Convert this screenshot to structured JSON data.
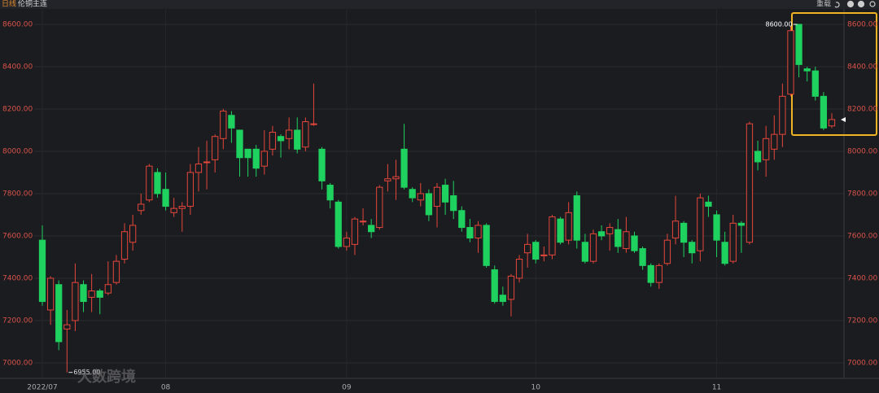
{
  "chart_data": {
    "type": "candlestick",
    "period": "日线",
    "title": "伦铜主连",
    "reload": "重载",
    "watermark": "大数跨境",
    "high_label": "8600.00",
    "low_label": "6955.00",
    "up_color": "#e5463b",
    "down_color": "#1fd15f",
    "categories": [
      "2022/07",
      null,
      null,
      null,
      null,
      null,
      null,
      null,
      null,
      null,
      null,
      null,
      null,
      null,
      null,
      "08",
      null,
      null,
      null,
      null,
      null,
      null,
      null,
      null,
      null,
      null,
      null,
      null,
      null,
      null,
      null,
      null,
      null,
      null,
      null,
      null,
      null,
      "09",
      null,
      null,
      null,
      null,
      null,
      null,
      null,
      null,
      null,
      null,
      null,
      null,
      null,
      null,
      null,
      null,
      null,
      null,
      null,
      null,
      null,
      null,
      "10",
      null,
      null,
      null,
      null,
      null,
      null,
      null,
      null,
      null,
      null,
      null,
      null,
      null,
      null,
      null,
      null,
      null,
      null,
      null,
      null,
      null,
      "11",
      null,
      null,
      null,
      null,
      null,
      null,
      null,
      null,
      null,
      null,
      null,
      null,
      null,
      null
    ],
    "open": [
      7580,
      7250,
      7370,
      7160,
      7200,
      7370,
      7310,
      7340,
      7330,
      7380,
      7490,
      7570,
      7720,
      7770,
      7900,
      7820,
      7710,
      7730,
      7740,
      7900,
      7950,
      7960,
      8060,
      8170,
      8100,
      8010,
      8010,
      7930,
      8010,
      8070,
      8060,
      8100,
      8020,
      8130,
      8010,
      7840,
      7760,
      7550,
      7560,
      7670,
      7650,
      7640,
      7860,
      7870,
      8010,
      7820,
      7770,
      7800,
      7740,
      7840,
      7790,
      7720,
      7640,
      7590,
      7650,
      7440,
      7320,
      7300,
      7400,
      7520,
      7570,
      7510,
      7510,
      7680,
      7580,
      7790,
      7570,
      7480,
      7620,
      7610,
      7630,
      7540,
      7600,
      7540,
      7460,
      7380,
      7470,
      7590,
      7660,
      7570,
      7530,
      7760,
      7700,
      7570,
      7480,
      7660,
      7570,
      8000,
      7960,
      8010,
      8080,
      8270,
      8600,
      8390,
      8380,
      8260,
      8120
    ],
    "high": [
      7650,
      7410,
      7390,
      7250,
      7470,
      7390,
      7420,
      7350,
      7480,
      7510,
      7660,
      7700,
      7800,
      7940,
      7920,
      7900,
      7780,
      7760,
      7940,
      8020,
      8050,
      8080,
      8200,
      8190,
      8100,
      8010,
      8030,
      8100,
      8120,
      8080,
      8160,
      8160,
      8160,
      8320,
      8020,
      7850,
      7770,
      7620,
      7690,
      7730,
      7680,
      7840,
      7940,
      7960,
      8130,
      7830,
      7850,
      7820,
      7850,
      7870,
      7860,
      7740,
      7680,
      7670,
      7660,
      7460,
      7360,
      7420,
      7510,
      7610,
      7580,
      7550,
      7700,
      7690,
      7760,
      7810,
      7610,
      7630,
      7650,
      7660,
      7680,
      7690,
      7620,
      7550,
      7470,
      7470,
      7610,
      7790,
      7670,
      7580,
      7800,
      7790,
      7720,
      7620,
      7700,
      7670,
      8140,
      8050,
      8120,
      8170,
      8320,
      8590,
      8600,
      8400,
      8400,
      8280,
      8180
    ],
    "low": [
      7270,
      7180,
      7060,
      6955,
      7150,
      7240,
      7240,
      7230,
      7320,
      7370,
      7470,
      7530,
      7700,
      7760,
      7780,
      7720,
      7690,
      7620,
      7700,
      7810,
      7820,
      7900,
      8010,
      8040,
      7880,
      7880,
      7880,
      7890,
      7980,
      7970,
      8010,
      7990,
      8000,
      8120,
      7820,
      7730,
      7540,
      7530,
      7510,
      7650,
      7590,
      7630,
      7810,
      7770,
      7820,
      7760,
      7740,
      7670,
      7640,
      7700,
      7680,
      7620,
      7570,
      7520,
      7450,
      7280,
      7270,
      7220,
      7380,
      7450,
      7470,
      7480,
      7490,
      7560,
      7560,
      7540,
      7470,
      7470,
      7580,
      7530,
      7520,
      7520,
      7520,
      7440,
      7360,
      7350,
      7460,
      7560,
      7500,
      7470,
      7480,
      7690,
      7500,
      7460,
      7470,
      7520,
      7560,
      7910,
      7880,
      7960,
      8020,
      8260,
      8350,
      8330,
      8240,
      8100,
      8110
    ],
    "close": [
      7290,
      7400,
      7100,
      7180,
      7380,
      7290,
      7340,
      7310,
      7370,
      7480,
      7620,
      7650,
      7750,
      7930,
      7800,
      7740,
      7730,
      7740,
      7900,
      7940,
      7950,
      8070,
      8190,
      8110,
      7970,
      7970,
      7920,
      8000,
      8090,
      8050,
      8100,
      8010,
      8140,
      8130,
      7860,
      7770,
      7550,
      7590,
      7680,
      7670,
      7620,
      7830,
      7870,
      7880,
      7830,
      7780,
      7800,
      7700,
      7830,
      7760,
      7720,
      7640,
      7590,
      7650,
      7460,
      7290,
      7290,
      7410,
      7490,
      7560,
      7490,
      7510,
      7690,
      7570,
      7710,
      7580,
      7480,
      7610,
      7600,
      7640,
      7550,
      7620,
      7530,
      7460,
      7380,
      7460,
      7580,
      7670,
      7570,
      7520,
      7780,
      7740,
      7580,
      7470,
      7660,
      7650,
      8130,
      7950,
      8060,
      8080,
      8260,
      8570,
      8410,
      8380,
      8260,
      8110,
      8150
    ],
    "ylim": [
      6946,
      8669
    ],
    "yticks": [
      {
        "value": 7000,
        "label": "7000.00"
      },
      {
        "value": 7200,
        "label": "7200.00"
      },
      {
        "value": 7400,
        "label": "7400.00"
      },
      {
        "value": 7600,
        "label": "7600.00"
      },
      {
        "value": 7800,
        "label": "7800.00"
      },
      {
        "value": 8000,
        "label": "8000.00"
      },
      {
        "value": 8200,
        "label": "8200.00"
      },
      {
        "value": 8400,
        "label": "8400.00"
      },
      {
        "value": 8600,
        "label": "8600.00"
      }
    ],
    "grid": true
  }
}
